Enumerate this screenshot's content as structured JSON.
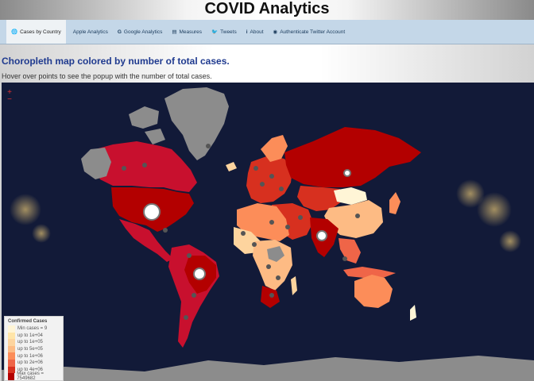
{
  "app": {
    "title": "COVID Analytics"
  },
  "nav": {
    "items": [
      {
        "label": "Cases by Country",
        "icon": "globe-icon",
        "active": true
      },
      {
        "label": "Apple Analytics",
        "icon": "apple-icon",
        "active": false
      },
      {
        "label": "Google Analytics",
        "icon": "google-icon",
        "active": false
      },
      {
        "label": "Measures",
        "icon": "document-icon",
        "active": false
      },
      {
        "label": "Tweets",
        "icon": "twitter-icon",
        "active": false
      },
      {
        "label": "About",
        "icon": "info-icon",
        "active": false
      },
      {
        "label": "Authenticate Twitter Account",
        "icon": "user-circle-icon",
        "active": false
      }
    ]
  },
  "main": {
    "heading": "Choropleth map colored by number of total cases.",
    "hint": "Hover over points to see the popup with the number of total cases."
  },
  "map": {
    "zoom_in": "+",
    "zoom_out": "−",
    "legend": {
      "title": "Confirmed Cases",
      "items": [
        {
          "label": "Min cases = 9",
          "color": "#fff5d6"
        },
        {
          "label": "up to 1e+04",
          "color": "#ffe5a8"
        },
        {
          "label": "up to 1e+05",
          "color": "#fdd49e"
        },
        {
          "label": "up to 5e+05",
          "color": "#fdbb84"
        },
        {
          "label": "up to 1e+06",
          "color": "#fc8d59"
        },
        {
          "label": "up to 2e+06",
          "color": "#ef6548"
        },
        {
          "label": "up to 4e+06",
          "color": "#d7301f"
        },
        {
          "label": "Max cases = 7549682",
          "color": "#b30000"
        }
      ]
    }
  },
  "colors": {
    "ocean": "#121a38",
    "no_data": "#8c8c8c",
    "nav_bg": "#c4d7e8",
    "heading": "#1f3a8f"
  }
}
